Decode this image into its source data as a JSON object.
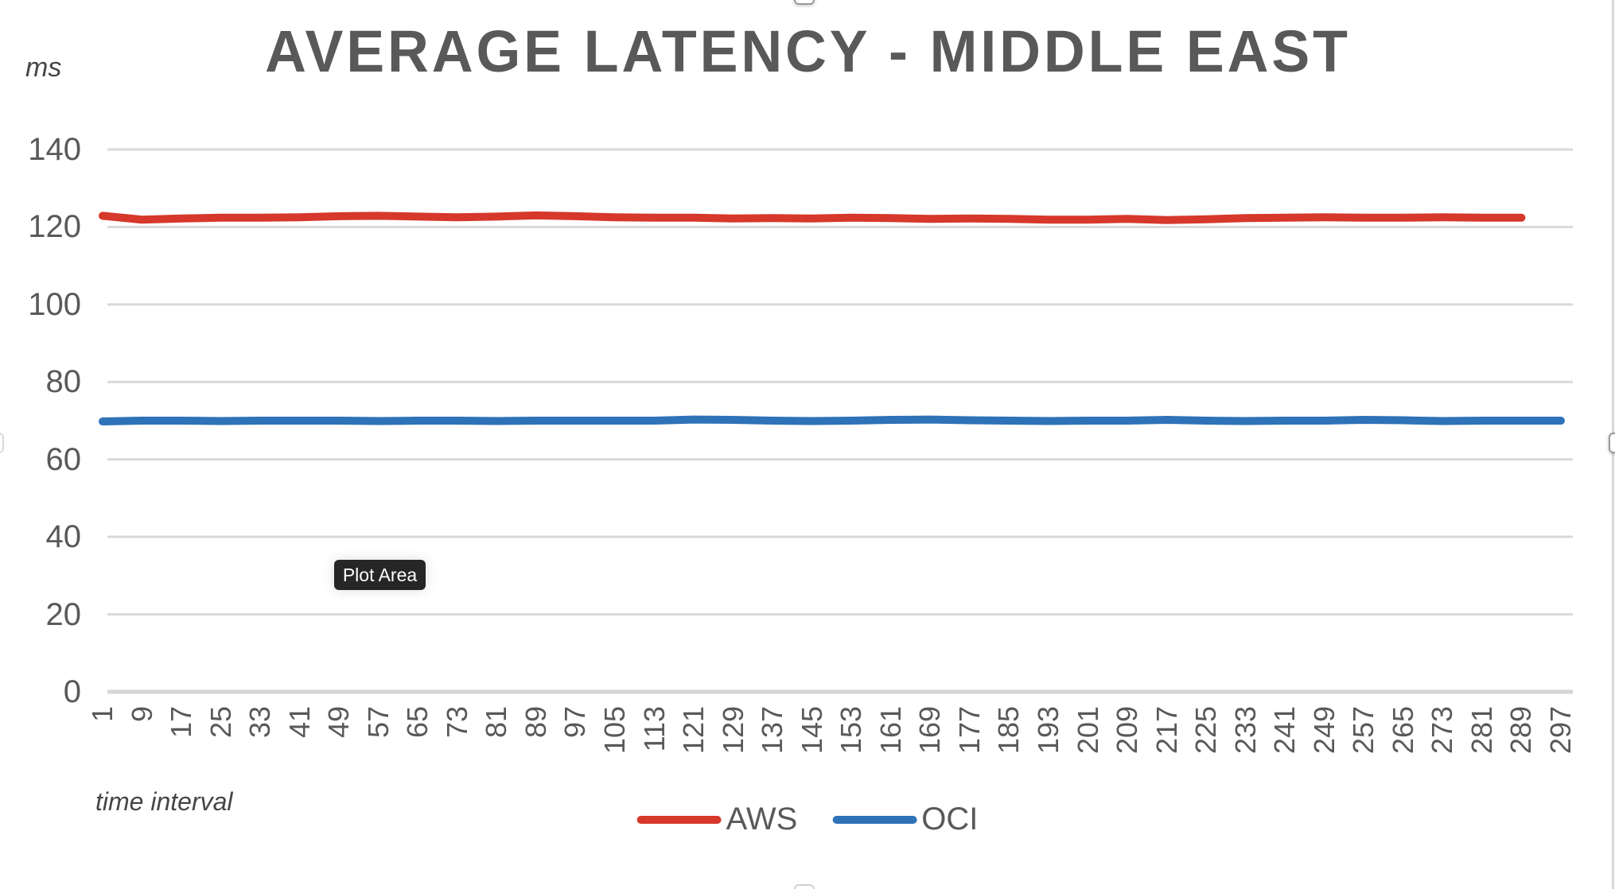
{
  "chart": {
    "title": "AVERAGE LATENCY - MIDDLE EAST",
    "y_axis_title": "ms",
    "x_axis_title": "time interval",
    "plot_area_tooltip": "Plot Area"
  },
  "colors": {
    "aws": "#D6382B",
    "oci": "#2E72B8",
    "gridline": "#D9D9D9",
    "axis_line": "#D6D6D6",
    "tick_text": "#595959",
    "title_text": "#595959",
    "tooltip_bg": "#262626",
    "tooltip_text": "#FFFFFF"
  },
  "chart_data": {
    "type": "line",
    "title": "AVERAGE LATENCY - MIDDLE EAST",
    "xlabel": "time interval",
    "ylabel": "ms",
    "ylim": [
      0,
      140
    ],
    "y_ticks": [
      0,
      20,
      40,
      60,
      80,
      100,
      120,
      140
    ],
    "grid": true,
    "legend_position": "bottom",
    "categories": [
      1,
      9,
      17,
      25,
      33,
      41,
      49,
      57,
      65,
      73,
      81,
      89,
      97,
      105,
      113,
      121,
      129,
      137,
      145,
      153,
      161,
      169,
      177,
      185,
      193,
      201,
      209,
      217,
      225,
      233,
      241,
      249,
      257,
      265,
      273,
      281,
      289,
      297
    ],
    "series": [
      {
        "name": "AWS",
        "color": "#D6382B",
        "values": [
          122.9,
          121.9,
          122.2,
          122.4,
          122.4,
          122.5,
          122.8,
          122.9,
          122.7,
          122.5,
          122.7,
          123.0,
          122.8,
          122.5,
          122.4,
          122.4,
          122.2,
          122.3,
          122.2,
          122.4,
          122.3,
          122.1,
          122.2,
          122.1,
          121.9,
          121.9,
          122.1,
          121.8,
          122.0,
          122.3,
          122.4,
          122.5,
          122.4,
          122.4,
          122.5,
          122.4,
          122.4,
          null
        ]
      },
      {
        "name": "OCI",
        "color": "#2E72B8",
        "values": [
          69.8,
          70.0,
          70.0,
          69.9,
          70.0,
          70.0,
          70.0,
          69.9,
          70.0,
          70.0,
          69.9,
          70.0,
          70.0,
          70.0,
          70.0,
          70.3,
          70.2,
          70.0,
          69.9,
          70.0,
          70.2,
          70.3,
          70.1,
          70.0,
          69.9,
          70.0,
          70.0,
          70.2,
          70.0,
          69.9,
          70.0,
          70.0,
          70.2,
          70.1,
          69.9,
          70.0,
          70.0,
          70.0
        ]
      }
    ]
  }
}
